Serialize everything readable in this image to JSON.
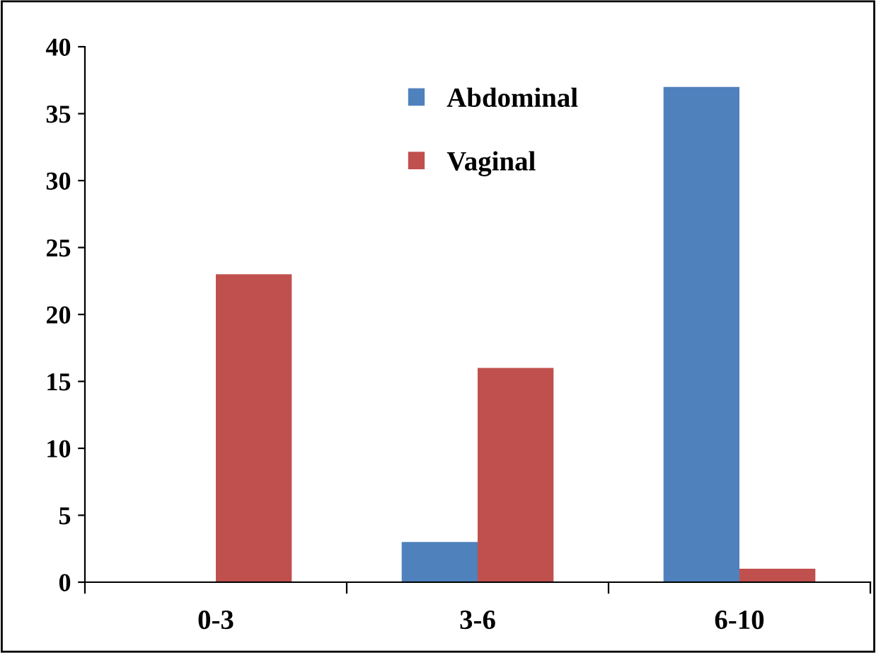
{
  "chart_data": {
    "type": "bar",
    "categories": [
      "0-3",
      "3-6",
      "6-10"
    ],
    "series": [
      {
        "name": "Abdominal",
        "color": "#4f81bd",
        "values": [
          0,
          3,
          37
        ]
      },
      {
        "name": "Vaginal",
        "color": "#c0504d",
        "values": [
          23,
          16,
          1
        ]
      }
    ],
    "ylim": [
      0,
      40
    ],
    "yticks": [
      0,
      5,
      10,
      15,
      20,
      25,
      30,
      35,
      40
    ],
    "grid": false,
    "legend": "top right"
  }
}
